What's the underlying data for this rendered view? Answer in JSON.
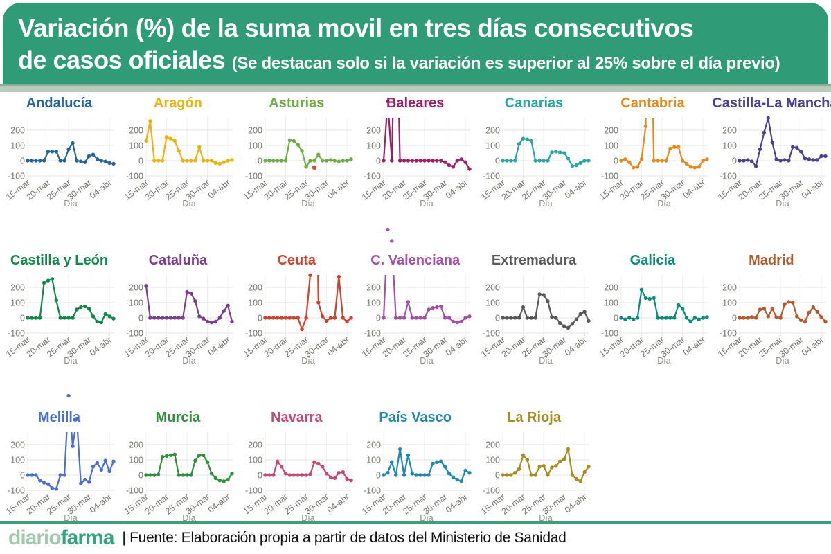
{
  "header": {
    "title_line1": "Variación (%) de la suma movil en tres días consecutivos",
    "title_line2_main": "de casos oficiales",
    "title_line2_note": "(Se destacan solo si la variación es superior al 25% sobre el día previo)",
    "bg_color": "#2f9b77",
    "strip_color": "#b7cabc",
    "strip_edge_color": "#8cab98"
  },
  "footer": {
    "logo_part1": "diario",
    "logo_part2": "farma",
    "logo_part1_color": "#a2c8af",
    "logo_part2_color": "#33a47d",
    "divider_color": "#3da07a",
    "source_text": "| Fuente: Elaboración propia a partir de datos del Ministerio de Sanidad"
  },
  "chart_data": {
    "type": "line",
    "small_multiples": true,
    "xlabel": "Día",
    "y_ticks": [
      200,
      100,
      0,
      -100
    ],
    "ylim": [
      -100,
      200
    ],
    "grid": true,
    "grid_color": "#e4e4e0",
    "vgrid_color": "#ededea",
    "tick_color": "#78756d",
    "xlabel_color": "#908e87",
    "x": [
      "15-mar",
      "16-mar",
      "17-mar",
      "18-mar",
      "19-mar",
      "20-mar",
      "21-mar",
      "22-mar",
      "23-mar",
      "24-mar",
      "25-mar",
      "26-mar",
      "27-mar",
      "28-mar",
      "29-mar",
      "30-mar",
      "31-mar",
      "01-abr",
      "02-abr",
      "03-abr",
      "04-abr",
      "05-abr"
    ],
    "x_tick_labels": [
      "15-mar",
      "20-mar",
      "25-mar",
      "30-mar",
      "04-abr"
    ],
    "x_tick_indices": [
      0,
      5,
      10,
      15,
      20
    ],
    "layout": {
      "rows": [
        7,
        7,
        5
      ]
    },
    "charts": [
      {
        "id": "andalucia",
        "name": "Andalucía",
        "color": "#25659b",
        "values": [
          0,
          0,
          0,
          0,
          0,
          60,
          60,
          60,
          0,
          0,
          75,
          115,
          0,
          -5,
          -10,
          30,
          40,
          10,
          0,
          -5,
          -15,
          -20
        ]
      },
      {
        "id": "aragon",
        "name": "Aragón",
        "color": "#eeb111",
        "values": [
          130,
          260,
          0,
          0,
          0,
          155,
          145,
          130,
          65,
          0,
          0,
          0,
          0,
          90,
          0,
          0,
          0,
          -15,
          -20,
          -10,
          0,
          5
        ]
      },
      {
        "id": "asturias",
        "name": "Asturias",
        "color": "#6fac47",
        "values": [
          0,
          0,
          0,
          0,
          0,
          0,
          135,
          130,
          105,
          65,
          -40,
          0,
          0,
          40,
          0,
          0,
          5,
          0,
          -5,
          0,
          0,
          10
        ],
        "outliers": [
          {
            "index": 12,
            "value": -45,
            "color": "#cc4631"
          }
        ]
      },
      {
        "id": "baleares",
        "name": "Baleares",
        "color": "#9e2064",
        "values": [
          0,
          390,
          0,
          1200,
          0,
          0,
          0,
          0,
          0,
          0,
          0,
          0,
          0,
          0,
          0,
          -10,
          -30,
          -40,
          0,
          10,
          -10,
          -55
        ]
      },
      {
        "id": "canarias",
        "name": "Canarias",
        "color": "#2aa6a1",
        "values": [
          0,
          0,
          0,
          0,
          110,
          145,
          140,
          130,
          0,
          0,
          0,
          0,
          55,
          60,
          55,
          50,
          15,
          -35,
          -30,
          -15,
          0,
          0
        ]
      },
      {
        "id": "cantabria",
        "name": "Cantabria",
        "color": "#e28a20",
        "values": [
          0,
          10,
          -10,
          -45,
          -40,
          10,
          225,
          1500,
          0,
          0,
          0,
          0,
          80,
          90,
          90,
          0,
          -20,
          -40,
          -45,
          -40,
          0,
          10
        ]
      },
      {
        "id": "castilla-la-mancha",
        "name": "Castilla-La Mancha",
        "color": "#4d3f8f",
        "values": [
          0,
          0,
          5,
          -5,
          -35,
          75,
          185,
          280,
          120,
          10,
          0,
          5,
          0,
          90,
          85,
          60,
          15,
          10,
          5,
          5,
          30,
          30
        ]
      },
      {
        "id": "castilla-y-leon",
        "name": "Castilla y León",
        "color": "#12884b",
        "values": [
          0,
          0,
          0,
          0,
          230,
          245,
          255,
          115,
          0,
          0,
          0,
          0,
          55,
          70,
          75,
          60,
          10,
          -25,
          -30,
          25,
          10,
          -5
        ]
      },
      {
        "id": "cataluna",
        "name": "Cataluña",
        "color": "#7a3e8f",
        "values": [
          210,
          0,
          0,
          0,
          0,
          0,
          0,
          0,
          0,
          0,
          170,
          160,
          110,
          10,
          -5,
          -25,
          -30,
          -25,
          0,
          45,
          80,
          -25
        ]
      },
      {
        "id": "ceuta",
        "name": "Ceuta",
        "color": "#cd4330",
        "values": [
          0,
          0,
          0,
          0,
          0,
          0,
          0,
          0,
          0,
          -75,
          0,
          280,
          2200,
          100,
          10,
          -20,
          0,
          0,
          270,
          0,
          -25,
          0
        ]
      },
      {
        "id": "c-valenciana",
        "name": "C. Valenciana",
        "color": "#a450a4",
        "values": [
          0,
          580,
          505,
          0,
          0,
          0,
          105,
          0,
          0,
          0,
          0,
          55,
          65,
          70,
          75,
          0,
          0,
          -25,
          -30,
          -25,
          0,
          10
        ]
      },
      {
        "id": "extremadura",
        "name": "Extremadura",
        "color": "#595959",
        "values": [
          0,
          0,
          0,
          0,
          0,
          70,
          0,
          0,
          0,
          155,
          150,
          110,
          5,
          0,
          -35,
          -55,
          -65,
          -40,
          -10,
          25,
          40,
          -20
        ]
      },
      {
        "id": "galicia",
        "name": "Galicia",
        "color": "#0f8b7a",
        "values": [
          0,
          -10,
          0,
          -10,
          0,
          185,
          130,
          125,
          130,
          0,
          0,
          0,
          0,
          0,
          85,
          60,
          0,
          -25,
          0,
          -10,
          0,
          5
        ]
      },
      {
        "id": "madrid",
        "name": "Madrid",
        "color": "#b55a2c",
        "values": [
          0,
          0,
          0,
          5,
          0,
          55,
          60,
          10,
          60,
          5,
          0,
          90,
          105,
          100,
          10,
          -15,
          -25,
          35,
          70,
          40,
          5,
          -25
        ]
      },
      {
        "id": "melilla",
        "name": "Melilla",
        "color": "#4a6fd0",
        "values": [
          0,
          0,
          0,
          -35,
          -50,
          -60,
          -85,
          -90,
          0,
          0,
          520,
          190,
          370,
          -55,
          -30,
          -45,
          55,
          80,
          35,
          95,
          25,
          90
        ]
      },
      {
        "id": "murcia",
        "name": "Murcia",
        "color": "#2f8f3b",
        "values": [
          0,
          0,
          0,
          5,
          120,
          125,
          130,
          135,
          0,
          0,
          0,
          0,
          95,
          130,
          130,
          85,
          10,
          -20,
          -35,
          -40,
          -30,
          10
        ]
      },
      {
        "id": "navarra",
        "name": "Navarra",
        "color": "#c14a77",
        "values": [
          0,
          0,
          0,
          90,
          55,
          10,
          0,
          0,
          0,
          0,
          0,
          5,
          85,
          75,
          55,
          10,
          -15,
          -20,
          15,
          20,
          -25,
          -35
        ]
      },
      {
        "id": "pais-vasco",
        "name": "País Vasco",
        "color": "#2088ad",
        "values": [
          0,
          15,
          85,
          0,
          170,
          0,
          130,
          10,
          0,
          0,
          0,
          0,
          75,
          85,
          90,
          55,
          10,
          -15,
          -30,
          -40,
          30,
          15
        ]
      },
      {
        "id": "la-rioja",
        "name": "La Rioja",
        "color": "#a68c22",
        "values": [
          0,
          0,
          0,
          15,
          40,
          130,
          100,
          0,
          0,
          55,
          60,
          0,
          50,
          60,
          90,
          105,
          170,
          0,
          -25,
          -40,
          20,
          55
        ]
      }
    ]
  }
}
